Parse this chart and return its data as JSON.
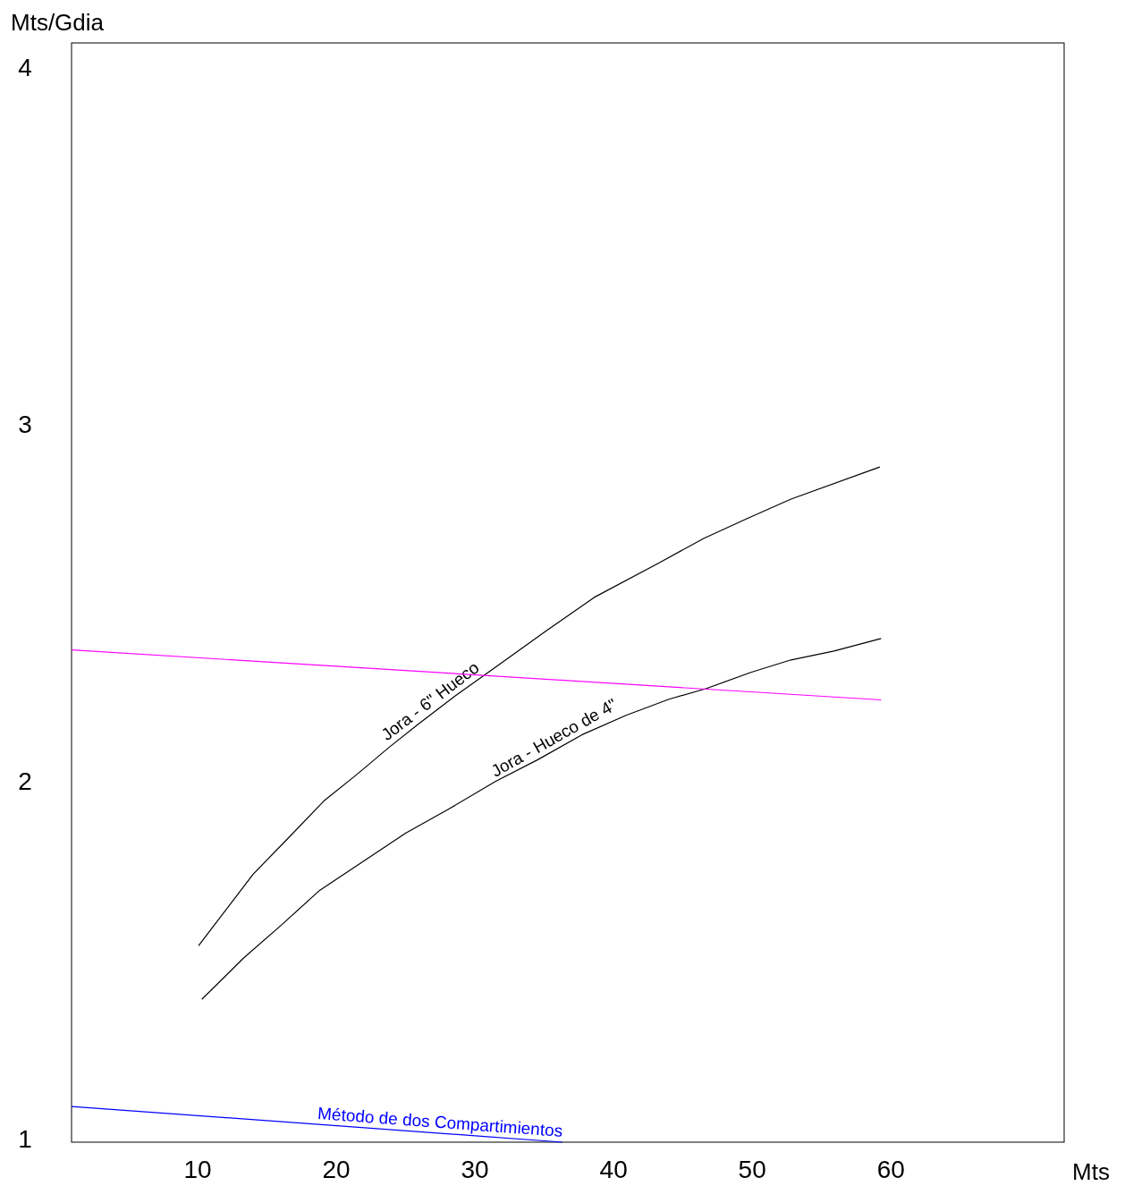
{
  "chart_data": {
    "type": "line",
    "xlabel": "Mts",
    "ylabel": "Mts/Gdia",
    "xlim": [
      0.9,
      72.5
    ],
    "ylim": [
      0.99,
      4.067
    ],
    "xticks": [
      10,
      20,
      30,
      40,
      50,
      60
    ],
    "yticks": [
      1,
      2,
      3,
      4
    ],
    "series": [
      {
        "name": "Jora - 6\" Hueco",
        "color": "#000000",
        "x": [
          10.06,
          14.0,
          16.5,
          19.1,
          21.5,
          23.8,
          25.9,
          28.6,
          31.5,
          35.1,
          38.6,
          43.2,
          46.5,
          49.6,
          52.8,
          59.2
        ],
        "values": [
          1.54,
          1.74,
          1.84,
          1.945,
          2.02,
          2.095,
          2.16,
          2.24,
          2.32,
          2.42,
          2.515,
          2.61,
          2.68,
          2.735,
          2.79,
          2.88
        ]
      },
      {
        "name": "Jora - Hueco de 4\"",
        "color": "#000000",
        "x": [
          10.3,
          13.3,
          16.1,
          18.8,
          21.9,
          25.0,
          28.0,
          31.5,
          34.5,
          37.7,
          40.9,
          44.0,
          46.7,
          49.9,
          52.8,
          55.9,
          59.3
        ],
        "values": [
          1.39,
          1.505,
          1.6,
          1.695,
          1.775,
          1.855,
          1.92,
          2.0,
          2.06,
          2.13,
          2.185,
          2.23,
          2.26,
          2.305,
          2.34,
          2.365,
          2.4
        ]
      },
      {
        "color": "#ff00ff",
        "x": [
          0.9,
          59.3
        ],
        "values": [
          2.368,
          2.228
        ]
      },
      {
        "name": "Método de dos Compartimientos",
        "color": "#0000ff",
        "x": [
          0.9,
          36.3
        ],
        "values": [
          1.09,
          0.99
        ]
      }
    ]
  }
}
